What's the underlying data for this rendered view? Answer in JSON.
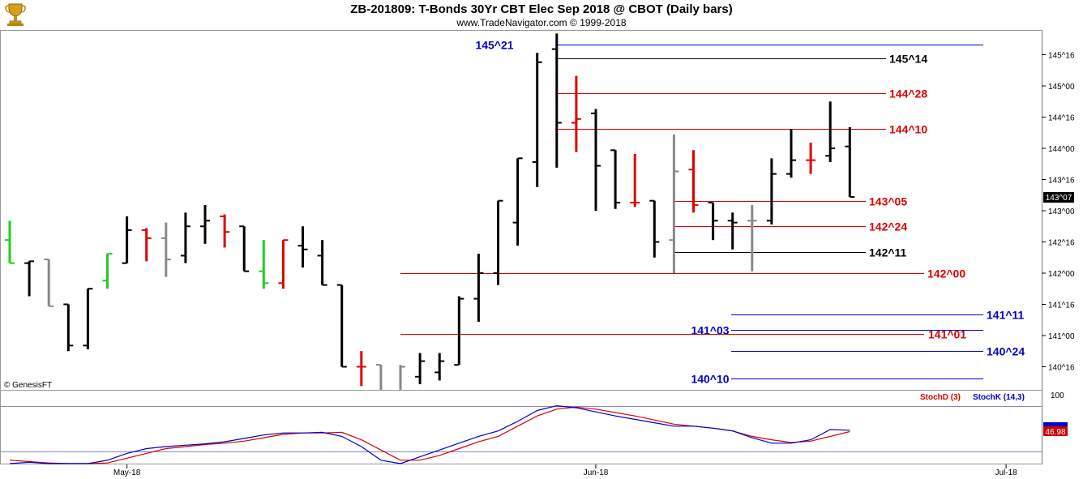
{
  "header": {
    "title": "ZB-201809:  T-Bonds 30Yr CBT Elec Sep 2018 @ CBOT  (Daily bars)",
    "subtitle": "www.TradeNavigator.com © 1999-2018"
  },
  "watermark": "© GenesisFT",
  "colors": {
    "up": "#000000",
    "down": "#e00000",
    "neutral": "#888888",
    "green": "#22cc22",
    "blue": "#0000cc",
    "red": "#dd0000"
  },
  "chart_data": [
    {
      "type": "ohlc",
      "price_axis": {
        "range_ticks": [
          139.875,
          145.625
        ],
        "tick_labels": [
          "145^16",
          "145^00",
          "144^16",
          "144^00",
          "143^16",
          "143^00",
          "142^16",
          "142^00",
          "141^16",
          "141^00",
          "140^16"
        ],
        "tick_values": [
          145.5,
          145.0,
          144.5,
          144.0,
          143.5,
          143.0,
          142.5,
          142.0,
          141.5,
          141.0,
          140.5
        ],
        "last_price_label": "143^07"
      },
      "x_axis": {
        "labels": [
          "May-18",
          "Jun-18",
          "Jul-18"
        ],
        "label_bar_index": [
          6,
          30,
          51
        ]
      },
      "bars": [
        {
          "o": 142.53,
          "h": 142.84,
          "l": 142.16,
          "c": 142.16,
          "col": "green"
        },
        {
          "o": 142.16,
          "h": 142.19,
          "l": 141.63,
          "c": 142.19,
          "col": "up"
        },
        {
          "o": 142.22,
          "h": 142.22,
          "l": 141.47,
          "c": 141.47,
          "col": "neutral"
        },
        {
          "o": 141.5,
          "h": 141.5,
          "l": 140.75,
          "c": 140.84,
          "col": "up"
        },
        {
          "o": 140.84,
          "h": 141.75,
          "l": 140.78,
          "c": 141.75,
          "col": "up"
        },
        {
          "o": 141.88,
          "h": 142.31,
          "l": 141.75,
          "c": 142.31,
          "col": "green"
        },
        {
          "o": 142.16,
          "h": 142.91,
          "l": 142.16,
          "c": 142.69,
          "col": "up"
        },
        {
          "o": 142.69,
          "h": 142.72,
          "l": 142.19,
          "c": 142.56,
          "col": "down"
        },
        {
          "o": 142.56,
          "h": 142.81,
          "l": 141.94,
          "c": 142.22,
          "col": "neutral"
        },
        {
          "o": 142.28,
          "h": 142.97,
          "l": 142.16,
          "c": 142.75,
          "col": "up"
        },
        {
          "o": 142.75,
          "h": 143.09,
          "l": 142.47,
          "c": 142.84,
          "col": "up"
        },
        {
          "o": 142.91,
          "h": 142.94,
          "l": 142.41,
          "c": 142.66,
          "col": "down"
        },
        {
          "o": 142.75,
          "h": 142.75,
          "l": 142.03,
          "c": 142.03,
          "col": "up"
        },
        {
          "o": 142.03,
          "h": 142.53,
          "l": 141.75,
          "c": 141.84,
          "col": "green"
        },
        {
          "o": 141.84,
          "h": 142.53,
          "l": 141.75,
          "c": 142.53,
          "col": "down"
        },
        {
          "o": 142.44,
          "h": 142.75,
          "l": 142.09,
          "c": 142.38,
          "col": "up"
        },
        {
          "o": 142.28,
          "h": 142.53,
          "l": 141.81,
          "c": 141.81,
          "col": "up"
        },
        {
          "o": 141.81,
          "h": 141.81,
          "l": 140.5,
          "c": 140.5,
          "col": "up"
        },
        {
          "o": 140.5,
          "h": 140.75,
          "l": 140.19,
          "c": 140.5,
          "col": "down"
        },
        {
          "o": 140.53,
          "h": 140.53,
          "l": 140.03,
          "c": 140.06,
          "col": "neutral"
        },
        {
          "o": 140.06,
          "h": 140.53,
          "l": 140.03,
          "c": 140.5,
          "col": "neutral"
        },
        {
          "o": 140.34,
          "h": 140.72,
          "l": 140.22,
          "c": 140.59,
          "col": "up"
        },
        {
          "o": 140.41,
          "h": 140.72,
          "l": 140.28,
          "c": 140.59,
          "col": "up"
        },
        {
          "o": 140.53,
          "h": 141.63,
          "l": 140.53,
          "c": 141.59,
          "col": "up"
        },
        {
          "o": 141.59,
          "h": 142.31,
          "l": 141.22,
          "c": 142.0,
          "col": "up"
        },
        {
          "o": 142.0,
          "h": 143.16,
          "l": 141.81,
          "c": 143.16,
          "col": "up"
        },
        {
          "o": 142.81,
          "h": 143.84,
          "l": 142.44,
          "c": 143.84,
          "col": "up"
        },
        {
          "o": 143.78,
          "h": 145.53,
          "l": 143.38,
          "c": 145.38,
          "col": "up"
        },
        {
          "o": 145.59,
          "h": 145.84,
          "l": 143.69,
          "c": 144.41,
          "col": "up"
        },
        {
          "o": 144.41,
          "h": 145.16,
          "l": 143.94,
          "c": 144.47,
          "col": "down"
        },
        {
          "o": 144.56,
          "h": 144.63,
          "l": 143.0,
          "c": 143.72,
          "col": "up"
        },
        {
          "o": 143.97,
          "h": 143.97,
          "l": 143.03,
          "c": 143.13,
          "col": "up"
        },
        {
          "o": 143.13,
          "h": 143.91,
          "l": 143.06,
          "c": 143.13,
          "col": "down"
        },
        {
          "o": 143.16,
          "h": 143.16,
          "l": 142.25,
          "c": 142.5,
          "col": "up"
        },
        {
          "o": 142.53,
          "h": 144.22,
          "l": 142.0,
          "c": 143.63,
          "col": "neutral"
        },
        {
          "o": 143.66,
          "h": 143.97,
          "l": 142.97,
          "c": 143.09,
          "col": "down"
        },
        {
          "o": 143.13,
          "h": 143.13,
          "l": 142.53,
          "c": 142.84,
          "col": "up"
        },
        {
          "o": 142.84,
          "h": 142.97,
          "l": 142.38,
          "c": 142.81,
          "col": "up"
        },
        {
          "o": 142.84,
          "h": 143.09,
          "l": 142.03,
          "c": 142.84,
          "col": "neutral"
        },
        {
          "o": 142.84,
          "h": 143.84,
          "l": 142.78,
          "c": 143.59,
          "col": "up"
        },
        {
          "o": 143.59,
          "h": 144.31,
          "l": 143.53,
          "c": 143.81,
          "col": "up"
        },
        {
          "o": 143.81,
          "h": 144.09,
          "l": 143.59,
          "c": 143.81,
          "col": "down"
        },
        {
          "o": 143.88,
          "h": 144.75,
          "l": 143.78,
          "c": 144.0,
          "col": "up"
        },
        {
          "o": 144.03,
          "h": 144.34,
          "l": 143.22,
          "c": 143.22,
          "col": "up"
        }
      ],
      "levels": [
        {
          "label": "145^21",
          "value": 145.66,
          "color": "blue"
        },
        {
          "label": "145^14",
          "value": 145.44,
          "color": "up"
        },
        {
          "label": "144^28",
          "value": 144.88,
          "color": "red"
        },
        {
          "label": "144^10",
          "value": 144.31,
          "color": "red"
        },
        {
          "label": "143^05",
          "value": 143.16,
          "color": "red"
        },
        {
          "label": "142^24",
          "value": 142.75,
          "color": "red"
        },
        {
          "label": "142^11",
          "value": 142.34,
          "color": "up"
        },
        {
          "label": "142^00",
          "value": 142.0,
          "color": "red"
        },
        {
          "label": "141^11",
          "value": 141.34,
          "color": "blue"
        },
        {
          "label": "141^03",
          "value": 141.09,
          "color": "blue"
        },
        {
          "label": "141^01",
          "value": 141.03,
          "color": "red"
        },
        {
          "label": "140^24",
          "value": 140.75,
          "color": "blue"
        },
        {
          "label": "140^10",
          "value": 140.31,
          "color": "blue"
        }
      ]
    },
    {
      "type": "line",
      "ylim": [
        0,
        100
      ],
      "tick_labels": [
        "100"
      ],
      "last_value_label": "46.98",
      "legend": [
        "StochD (3)",
        "StochK (14,3)"
      ],
      "series": [
        {
          "name": "StochD (3)",
          "color": "red",
          "values": [
            5,
            3,
            1,
            0,
            0,
            1,
            8,
            15,
            22,
            25,
            28,
            30,
            33,
            38,
            43,
            45,
            45,
            46,
            35,
            20,
            5,
            5,
            12,
            22,
            32,
            40,
            55,
            70,
            80,
            83,
            80,
            75,
            70,
            64,
            58,
            55,
            52,
            48,
            40,
            35,
            31,
            33,
            40,
            47
          ]
        },
        {
          "name": "StochK (14,3)",
          "color": "blue",
          "values": [
            0,
            2,
            0,
            0,
            0,
            5,
            15,
            22,
            25,
            27,
            29,
            32,
            37,
            42,
            45,
            45,
            46,
            40,
            25,
            5,
            0,
            10,
            20,
            30,
            40,
            48,
            62,
            78,
            85,
            82,
            76,
            70,
            65,
            60,
            55,
            55,
            52,
            48,
            38,
            30,
            30,
            35,
            50,
            49
          ]
        }
      ]
    }
  ]
}
